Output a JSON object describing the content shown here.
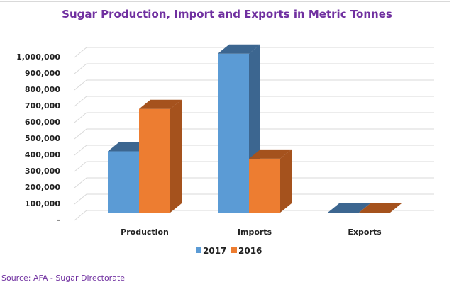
{
  "chart_data": {
    "type": "bar",
    "title": "Sugar Production, Import and Exports in Metric Tonnes",
    "categories": [
      "Production",
      "Imports",
      "Exports"
    ],
    "series": [
      {
        "name": "2017",
        "values": [
          376000,
          975000,
          0
        ],
        "color": "#5b9bd5",
        "side": "#3c6690"
      },
      {
        "name": "2016",
        "values": [
          636000,
          331000,
          0
        ],
        "color": "#ed7d31",
        "side": "#a5521d"
      }
    ],
    "yticks": [
      "-",
      "100,000",
      "200,000",
      "300,000",
      "400,000",
      "500,000",
      "600,000",
      "700,000",
      "800,000",
      "900,000",
      "1,000,000"
    ],
    "ylim": [
      0,
      1100000
    ],
    "xlabel": "",
    "ylabel": "",
    "grid": true,
    "legend": "bottom"
  },
  "source": "Source: AFA - Sugar Directorate"
}
